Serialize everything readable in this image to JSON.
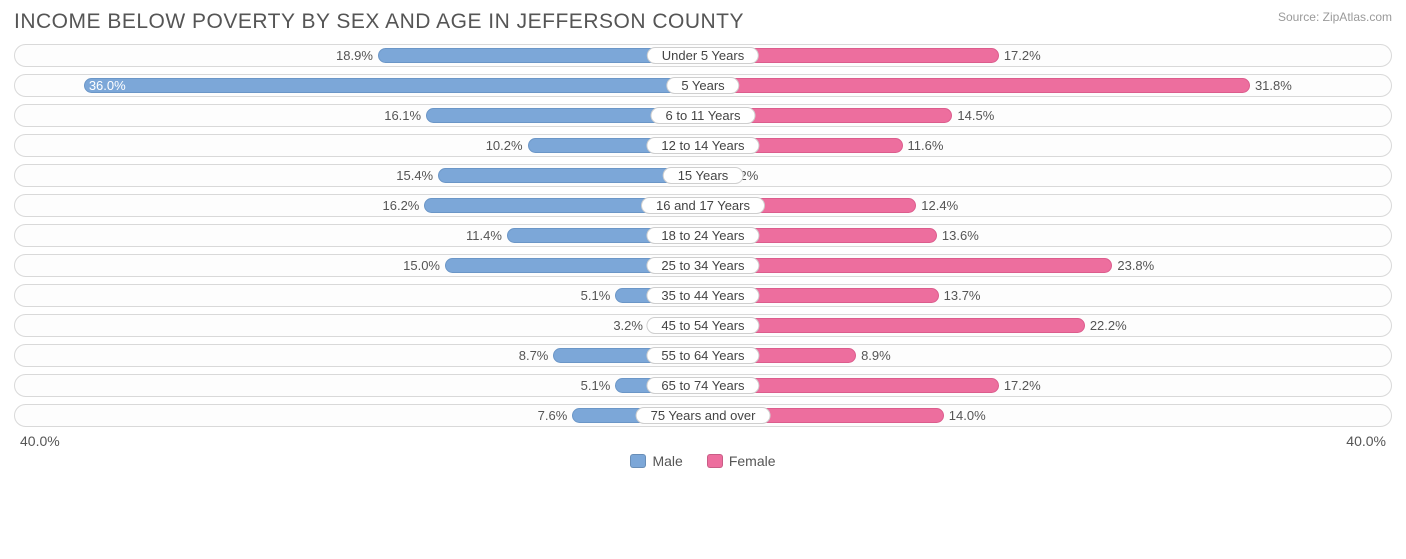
{
  "title": "INCOME BELOW POVERTY BY SEX AND AGE IN JEFFERSON COUNTY",
  "source_prefix": "Source: ",
  "source_name": "ZipAtlas.com",
  "axis_max": 40.0,
  "axis_left_label": "40.0%",
  "axis_right_label": "40.0%",
  "legend": {
    "male": "Male",
    "female": "Female"
  },
  "colors": {
    "male_fill": "#7ca7d8",
    "male_border": "#6b96c7",
    "female_fill": "#ed6e9e",
    "female_border": "#dc5d8d",
    "row_border": "#d9d9d9",
    "text": "#555555",
    "pill_bg": "#ffffff",
    "pill_border": "#cfcfcf",
    "background": "#ffffff"
  },
  "typography": {
    "title_fontsize": 21,
    "label_fontsize": 13,
    "axis_fontsize": 14,
    "legend_fontsize": 14,
    "source_fontsize": 12,
    "font_family": "Arial"
  },
  "chart": {
    "type": "diverging-bar",
    "categories": [
      {
        "label": "Under 5 Years",
        "male": 18.9,
        "female": 17.2,
        "male_label": "18.9%",
        "female_label": "17.2%"
      },
      {
        "label": "5 Years",
        "male": 36.0,
        "female": 31.8,
        "male_label": "36.0%",
        "female_label": "31.8%"
      },
      {
        "label": "6 to 11 Years",
        "male": 16.1,
        "female": 14.5,
        "male_label": "16.1%",
        "female_label": "14.5%"
      },
      {
        "label": "12 to 14 Years",
        "male": 10.2,
        "female": 11.6,
        "male_label": "10.2%",
        "female_label": "11.6%"
      },
      {
        "label": "15 Years",
        "male": 15.4,
        "female": 1.2,
        "male_label": "15.4%",
        "female_label": "1.2%"
      },
      {
        "label": "16 and 17 Years",
        "male": 16.2,
        "female": 12.4,
        "male_label": "16.2%",
        "female_label": "12.4%"
      },
      {
        "label": "18 to 24 Years",
        "male": 11.4,
        "female": 13.6,
        "male_label": "11.4%",
        "female_label": "13.6%"
      },
      {
        "label": "25 to 34 Years",
        "male": 15.0,
        "female": 23.8,
        "male_label": "15.0%",
        "female_label": "23.8%"
      },
      {
        "label": "35 to 44 Years",
        "male": 5.1,
        "female": 13.7,
        "male_label": "5.1%",
        "female_label": "13.7%"
      },
      {
        "label": "45 to 54 Years",
        "male": 3.2,
        "female": 22.2,
        "male_label": "3.2%",
        "female_label": "22.2%"
      },
      {
        "label": "55 to 64 Years",
        "male": 8.7,
        "female": 8.9,
        "male_label": "8.7%",
        "female_label": "8.9%"
      },
      {
        "label": "65 to 74 Years",
        "male": 5.1,
        "female": 17.2,
        "male_label": "5.1%",
        "female_label": "17.2%"
      },
      {
        "label": "75 Years and over",
        "male": 7.6,
        "female": 14.0,
        "male_label": "7.6%",
        "female_label": "14.0%"
      }
    ]
  }
}
